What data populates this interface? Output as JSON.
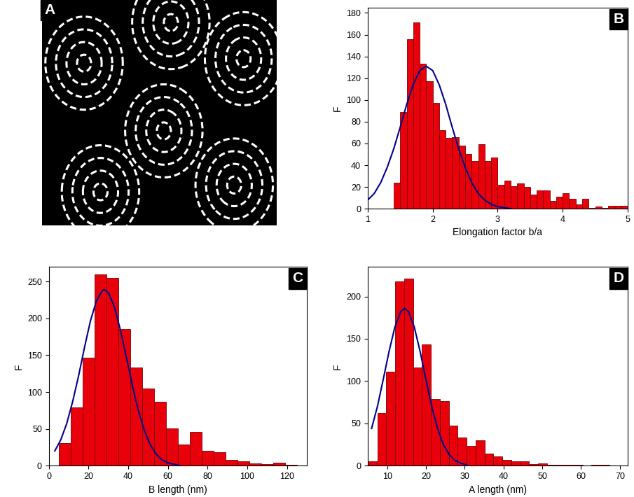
{
  "chart_data": [
    {
      "type": "image",
      "panel_label": "A"
    },
    {
      "type": "histogram",
      "panel_label": "B",
      "x_label": "Elongation factor b/a",
      "y_label": "F",
      "bins": [
        1.4,
        1.5,
        1.6,
        1.7,
        1.8,
        1.9,
        2.0,
        2.1,
        2.2,
        2.3,
        2.4,
        2.5,
        2.6,
        2.7,
        2.8,
        2.9,
        3.0,
        3.1,
        3.2,
        3.3,
        3.4,
        3.5,
        3.6,
        3.7,
        3.8,
        3.9,
        4.0,
        4.1,
        4.2,
        4.3,
        4.4,
        4.5,
        4.6,
        4.7,
        4.8,
        4.9,
        5.0
      ],
      "counts": [
        24,
        89,
        156,
        171,
        133,
        117,
        97,
        72,
        65,
        66,
        58,
        50,
        44,
        59,
        44,
        47,
        22,
        26,
        21,
        23,
        20,
        13,
        17,
        17,
        7,
        11,
        14,
        9,
        4,
        9,
        1,
        2,
        1,
        3,
        3,
        3
      ],
      "color": "#e8000b",
      "fit_curve": {
        "color": "#00008b",
        "x": [
          1.0,
          1.1,
          1.2,
          1.3,
          1.4,
          1.5,
          1.6,
          1.7,
          1.8,
          1.9,
          2.0,
          2.1,
          2.2,
          2.3,
          2.4,
          2.5,
          2.6,
          2.7,
          2.8,
          2.9,
          3.0,
          3.2
        ],
        "y": [
          8,
          14,
          24,
          38,
          55,
          75,
          96,
          114,
          127,
          131,
          127,
          114,
          96,
          75,
          55,
          38,
          24,
          14,
          8,
          4,
          2,
          0
        ]
      },
      "xlim": [
        1,
        5
      ],
      "xticks": [
        1,
        2,
        3,
        4,
        5
      ],
      "ylim": [
        0,
        185
      ],
      "yticks": [
        0,
        20,
        40,
        60,
        80,
        100,
        120,
        140,
        160,
        180
      ]
    },
    {
      "type": "histogram",
      "panel_label": "C",
      "x_label": "B length (nm)",
      "y_label": "F",
      "bins": [
        5,
        11,
        17,
        23,
        29,
        35,
        41,
        47,
        53,
        59,
        65,
        71,
        77,
        83,
        89,
        95,
        101,
        107,
        113,
        119,
        125
      ],
      "counts": [
        31,
        79,
        147,
        260,
        255,
        186,
        133,
        105,
        87,
        51,
        29,
        46,
        20,
        18,
        8,
        6,
        3,
        2,
        4,
        1
      ],
      "color": "#e8000b",
      "fit_curve": {
        "color": "#00008b",
        "x": [
          3,
          6,
          9,
          12,
          15,
          18,
          21,
          24,
          27,
          28,
          30,
          33,
          36,
          39,
          42,
          45,
          48,
          51,
          54,
          57,
          60,
          63,
          66
        ],
        "y": [
          20,
          35,
          57,
          87,
          122,
          161,
          197,
          224,
          238,
          239,
          235,
          216,
          185,
          148,
          110,
          76,
          49,
          29,
          16,
          8,
          4,
          2,
          0
        ]
      },
      "xlim": [
        0,
        130
      ],
      "xticks": [
        0,
        20,
        40,
        60,
        80,
        100,
        120
      ],
      "ylim": [
        0,
        270
      ],
      "yticks": [
        0,
        50,
        100,
        150,
        200,
        250
      ]
    },
    {
      "type": "histogram",
      "panel_label": "D",
      "x_label": "A length (nm)",
      "y_label": "F",
      "bins": [
        5.2,
        7.5,
        9.8,
        12.1,
        14.4,
        16.7,
        19.0,
        21.3,
        23.6,
        25.9,
        28.2,
        30.5,
        32.8,
        35.1,
        37.4,
        39.7,
        42.0,
        44.3,
        46.6,
        48.9,
        51.2,
        53.5,
        55.8,
        58.1,
        60.4,
        62.7,
        65.0,
        67.3
      ],
      "counts": [
        5,
        62,
        111,
        218,
        221,
        116,
        143,
        79,
        76,
        47,
        33,
        23,
        30,
        14,
        11,
        7,
        5,
        5,
        2,
        3,
        1,
        1,
        1,
        1,
        0,
        1,
        1
      ],
      "color": "#e8000b",
      "fit_curve": {
        "color": "#00008b",
        "x": [
          6,
          7.5,
          9,
          10.5,
          12,
          13.5,
          14.5,
          15.5,
          17,
          18.5,
          20,
          21.5,
          23,
          24.5,
          26,
          27.5,
          29,
          30.5
        ],
        "y": [
          44,
          70,
          102,
          135,
          164,
          182,
          186,
          182,
          164,
          135,
          102,
          70,
          44,
          25,
          13,
          6,
          3,
          1
        ]
      },
      "xlim": [
        5,
        72
      ],
      "xticks": [
        10,
        20,
        30,
        40,
        50,
        60,
        70
      ],
      "ylim": [
        0,
        235
      ],
      "yticks": [
        0,
        50,
        100,
        150,
        200
      ]
    }
  ]
}
